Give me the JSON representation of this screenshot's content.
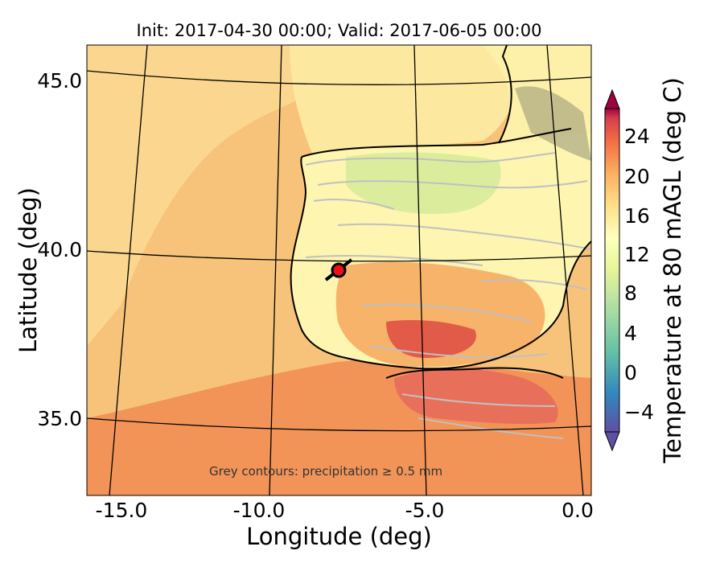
{
  "map": {
    "title": "Init: 2017-04-30 00:00; Valid: 2017-06-05 00:00",
    "xlabel": "Longitude (deg)",
    "ylabel": "Latitude (deg)",
    "annotation": "Grey contours: precipitation ≥ 0.5 mm",
    "lon_ticks": [
      "-15.0",
      "-10.0",
      "-5.0",
      "0.0"
    ],
    "lat_ticks": [
      "45.0",
      "40.0",
      "35.0"
    ],
    "colorbar": {
      "label": "Temperature at 80 mAGL (deg C)",
      "ticks": [
        "24",
        "20",
        "16",
        "12",
        "8",
        "4",
        "0",
        "−4"
      ]
    },
    "marker": {
      "lon": -7.8,
      "lat": 39.4,
      "color": "#ee1111"
    },
    "colors": {
      "ocean": "#f7c37a",
      "land_cool": "#fdf5b0",
      "land_green": "#d7ec9b",
      "warm": "#f29458",
      "hot": "#e25a48",
      "precip_contour": "#c0c0c0",
      "grid": "#000000"
    }
  }
}
